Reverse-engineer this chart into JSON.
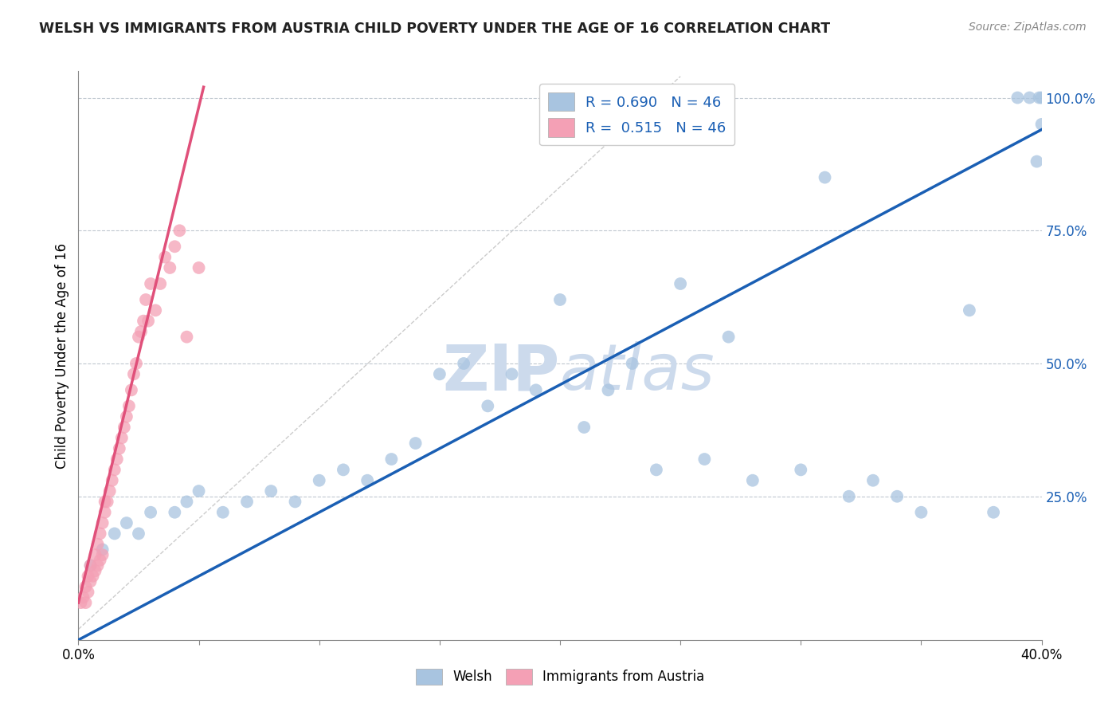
{
  "title": "WELSH VS IMMIGRANTS FROM AUSTRIA CHILD POVERTY UNDER THE AGE OF 16 CORRELATION CHART",
  "source": "Source: ZipAtlas.com",
  "ylabel": "Child Poverty Under the Age of 16",
  "xlim": [
    0.0,
    0.4
  ],
  "ylim": [
    -0.02,
    1.05
  ],
  "welsh_R": 0.69,
  "welsh_N": 46,
  "austria_R": 0.515,
  "austria_N": 46,
  "welsh_color": "#a8c4e0",
  "austria_color": "#f4a0b5",
  "welsh_line_color": "#1a5fb4",
  "austria_line_color": "#e0507a",
  "watermark_color": "#ccdaec",
  "welsh_x": [
    0.005,
    0.01,
    0.015,
    0.02,
    0.025,
    0.03,
    0.04,
    0.045,
    0.05,
    0.06,
    0.07,
    0.08,
    0.09,
    0.1,
    0.11,
    0.12,
    0.13,
    0.14,
    0.15,
    0.16,
    0.17,
    0.18,
    0.19,
    0.2,
    0.21,
    0.22,
    0.23,
    0.24,
    0.25,
    0.26,
    0.27,
    0.28,
    0.3,
    0.31,
    0.32,
    0.33,
    0.34,
    0.35,
    0.37,
    0.38,
    0.39,
    0.395,
    0.398,
    0.399,
    0.4,
    0.4
  ],
  "welsh_y": [
    0.12,
    0.15,
    0.18,
    0.2,
    0.18,
    0.22,
    0.22,
    0.24,
    0.26,
    0.22,
    0.24,
    0.26,
    0.24,
    0.28,
    0.3,
    0.28,
    0.32,
    0.35,
    0.48,
    0.5,
    0.42,
    0.48,
    0.45,
    0.62,
    0.38,
    0.45,
    0.5,
    0.3,
    0.65,
    0.32,
    0.55,
    0.28,
    0.3,
    0.85,
    0.25,
    0.28,
    0.25,
    0.22,
    0.6,
    0.22,
    1.0,
    1.0,
    0.88,
    1.0,
    1.0,
    0.95
  ],
  "austria_x": [
    0.001,
    0.002,
    0.003,
    0.003,
    0.004,
    0.004,
    0.005,
    0.005,
    0.006,
    0.007,
    0.007,
    0.008,
    0.008,
    0.009,
    0.009,
    0.01,
    0.01,
    0.011,
    0.011,
    0.012,
    0.013,
    0.014,
    0.015,
    0.016,
    0.017,
    0.018,
    0.019,
    0.02,
    0.021,
    0.022,
    0.023,
    0.024,
    0.025,
    0.026,
    0.027,
    0.028,
    0.029,
    0.03,
    0.032,
    0.034,
    0.036,
    0.038,
    0.04,
    0.042,
    0.045,
    0.05
  ],
  "austria_y": [
    0.05,
    0.06,
    0.05,
    0.08,
    0.07,
    0.1,
    0.09,
    0.12,
    0.1,
    0.11,
    0.14,
    0.12,
    0.16,
    0.13,
    0.18,
    0.14,
    0.2,
    0.22,
    0.24,
    0.24,
    0.26,
    0.28,
    0.3,
    0.32,
    0.34,
    0.36,
    0.38,
    0.4,
    0.42,
    0.45,
    0.48,
    0.5,
    0.55,
    0.56,
    0.58,
    0.62,
    0.58,
    0.65,
    0.6,
    0.65,
    0.7,
    0.68,
    0.72,
    0.75,
    0.55,
    0.68
  ],
  "welsh_line_x0": 0.0,
  "welsh_line_y0": -0.02,
  "welsh_line_x1": 0.4,
  "welsh_line_y1": 0.94,
  "austria_line_x0": 0.0,
  "austria_line_y0": 0.05,
  "austria_line_x1": 0.052,
  "austria_line_y1": 1.02,
  "ref_line_x0": 0.0,
  "ref_line_y0": 0.0,
  "ref_line_x1": 0.25,
  "ref_line_y1": 1.04
}
